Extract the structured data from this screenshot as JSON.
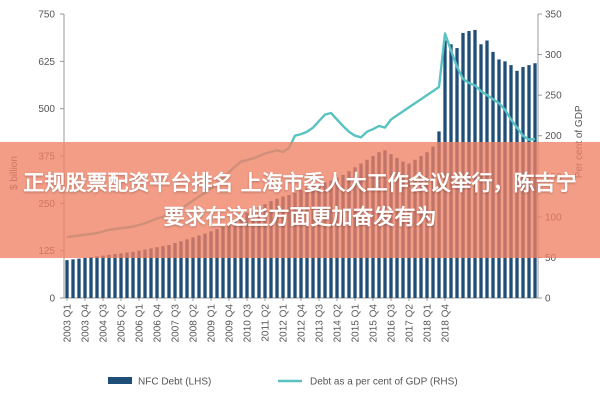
{
  "chart_data": {
    "type": "bar+line",
    "title": "",
    "left_axis": {
      "label": "$ billion",
      "ylim": [
        0,
        750
      ],
      "ticks": [
        "0",
        "125",
        "250",
        "375",
        "500",
        "625",
        "750"
      ]
    },
    "right_axis": {
      "label": "Per cent of GDP",
      "ylim": [
        0,
        350
      ],
      "ticks": [
        "0",
        "50",
        "100",
        "150",
        "200",
        "250",
        "300",
        "350"
      ]
    },
    "x_tick_labels": [
      "2003 Q1",
      "2003 Q4",
      "2004 Q3",
      "2005 Q2",
      "2006 Q1",
      "2006 Q4",
      "2007 Q3",
      "2008 Q2",
      "2009 Q1",
      "2009 Q4",
      "2010 Q3",
      "2011 Q2",
      "2012 Q1",
      "2012 Q4",
      "2013 Q3",
      "2014 Q2",
      "2015 Q1",
      "2015 Q4",
      "2016 Q3",
      "2017 Q2",
      "2018 Q1",
      "2018 Q4"
    ],
    "series": [
      {
        "name": "NFC Debt (LHS)",
        "kind": "bar",
        "axis": "left",
        "color": "#1f4e79",
        "values": [
          100,
          102,
          104,
          106,
          108,
          110,
          112,
          114,
          116,
          118,
          120,
          122,
          125,
          128,
          131,
          134,
          137,
          140,
          145,
          150,
          155,
          160,
          165,
          170,
          176,
          182,
          188,
          195,
          205,
          215,
          225,
          232,
          240,
          248,
          256,
          262,
          268,
          272,
          278,
          285,
          290,
          296,
          300,
          305,
          310,
          318,
          325,
          335,
          345,
          355,
          365,
          375,
          385,
          390,
          380,
          370,
          360,
          355,
          365,
          375,
          385,
          400,
          440,
          680,
          670,
          660,
          700,
          705,
          708,
          670,
          680,
          650,
          630,
          625,
          615,
          600,
          610,
          615,
          620
        ]
      },
      {
        "name": "Debt as a per cent of GDP (RHS)",
        "kind": "line",
        "axis": "right",
        "color": "#5bc2c2",
        "values": [
          75,
          76,
          77,
          78,
          79,
          80,
          82,
          84,
          85,
          86,
          87,
          88,
          90,
          92,
          95,
          98,
          100,
          103,
          106,
          110,
          115,
          120,
          125,
          130,
          135,
          140,
          148,
          155,
          162,
          168,
          170,
          172,
          175,
          178,
          180,
          182,
          180,
          185,
          200,
          202,
          205,
          210,
          218,
          226,
          228,
          220,
          212,
          205,
          200,
          198,
          205,
          208,
          212,
          210,
          220,
          225,
          230,
          235,
          240,
          245,
          250,
          255,
          260,
          326,
          305,
          285,
          270,
          265,
          262,
          255,
          250,
          245,
          240,
          232,
          220,
          210,
          200,
          195,
          196
        ]
      }
    ],
    "legend_position": "bottom",
    "grid": false
  },
  "overlay": {
    "headline": "正规股票配资平台排名 上海市委人大工作会议举行，陈吉宁要求在这些方面更加奋发有为"
  },
  "colors": {
    "bars": "#1f4e79",
    "line": "#5bc2c2",
    "axis": "#999999",
    "banner": "#f08064"
  }
}
